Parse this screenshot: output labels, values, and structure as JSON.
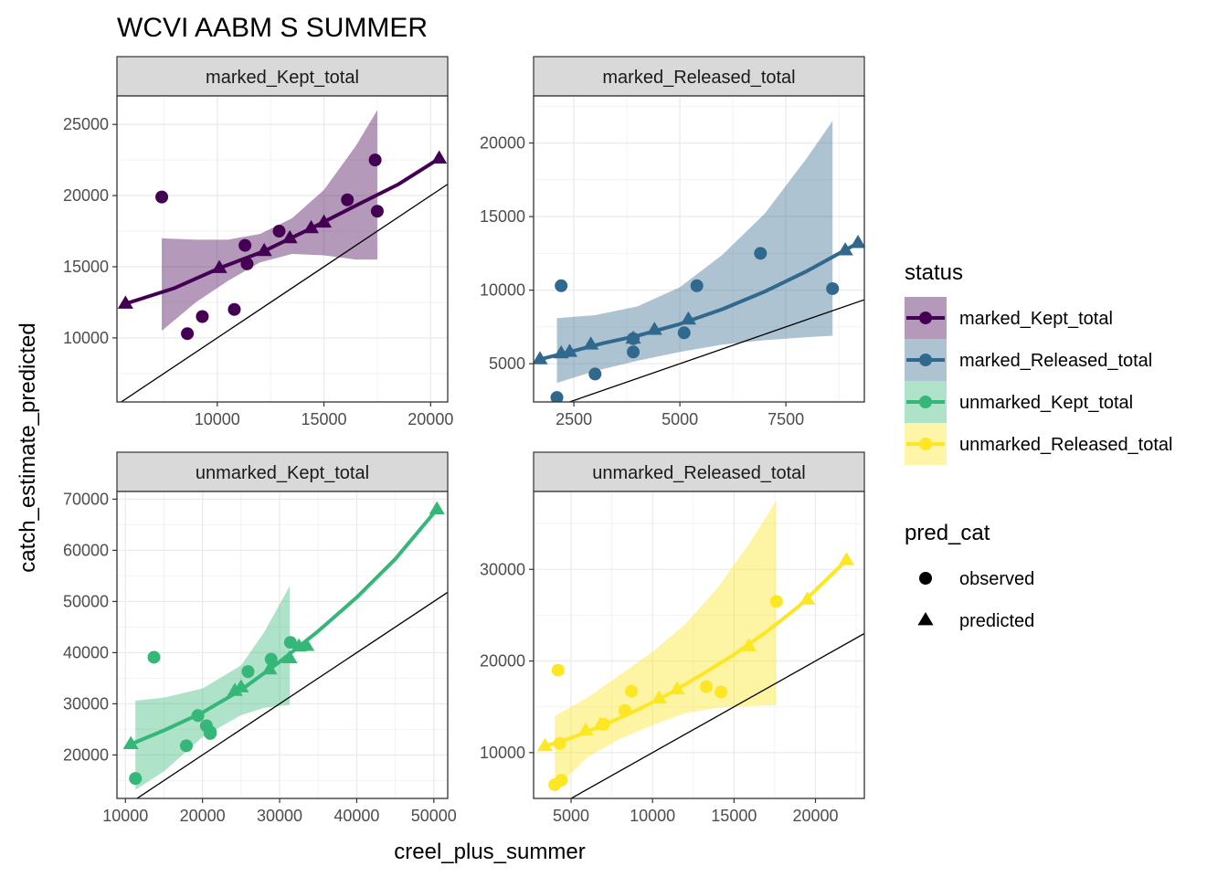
{
  "title": "WCVI AABM S SUMMER",
  "xlabel": "creel_plus_summer",
  "ylabel": "catch_estimate_predicted",
  "legend": {
    "status_title": "status",
    "status_items": [
      {
        "label": "marked_Kept_total",
        "color": "#440154"
      },
      {
        "label": "marked_Released_total",
        "color": "#31688E"
      },
      {
        "label": "unmarked_Kept_total",
        "color": "#35B779"
      },
      {
        "label": "unmarked_Released_total",
        "color": "#FDE725"
      }
    ],
    "shape_title": "pred_cat",
    "shape_items": [
      {
        "label": "observed",
        "shape": "circle"
      },
      {
        "label": "predicted",
        "shape": "triangle"
      }
    ]
  },
  "chart_data": [
    {
      "type": "scatter",
      "facet": "marked_Kept_total",
      "color": "#440154",
      "xlim": [
        5300,
        20800
      ],
      "ylim": [
        5500,
        27000
      ],
      "xticks": [
        10000,
        15000,
        20000
      ],
      "yticks": [
        10000,
        15000,
        20000,
        25000
      ],
      "observed": [
        [
          7400,
          19900
        ],
        [
          8600,
          10300
        ],
        [
          9300,
          11500
        ],
        [
          10800,
          12000
        ],
        [
          11300,
          16500
        ],
        [
          11400,
          15200
        ],
        [
          12900,
          17500
        ],
        [
          16100,
          19700
        ],
        [
          17400,
          22500
        ],
        [
          17500,
          18900
        ]
      ],
      "predicted": [
        [
          5700,
          12400
        ],
        [
          10100,
          14900
        ],
        [
          12200,
          16100
        ],
        [
          13400,
          17000
        ],
        [
          14400,
          17700
        ],
        [
          15000,
          18100
        ],
        [
          20400,
          22600
        ]
      ],
      "fit": [
        [
          5700,
          12400
        ],
        [
          8000,
          13500
        ],
        [
          10100,
          14900
        ],
        [
          12200,
          16100
        ],
        [
          14400,
          17700
        ],
        [
          16500,
          19300
        ],
        [
          18500,
          20800
        ],
        [
          20400,
          22600
        ]
      ],
      "ribbon_x": [
        7400,
        9000,
        10500,
        12000,
        13500,
        15000,
        16500,
        17500
      ],
      "ribbon_upper": [
        17000,
        16900,
        16900,
        17300,
        18400,
        20400,
        23500,
        26000
      ],
      "ribbon_lower": [
        10500,
        12500,
        14000,
        15300,
        15900,
        15800,
        15500,
        15500
      ],
      "identity_line": [
        [
          5300,
          5300
        ],
        [
          20800,
          20800
        ]
      ]
    },
    {
      "type": "scatter",
      "facet": "marked_Released_total",
      "color": "#31688E",
      "xlim": [
        1550,
        9350
      ],
      "ylim": [
        2400,
        23200
      ],
      "xticks": [
        2500,
        5000,
        7500
      ],
      "yticks": [
        5000,
        10000,
        15000,
        20000
      ],
      "observed": [
        [
          2100,
          2700
        ],
        [
          2200,
          10300
        ],
        [
          3000,
          4300
        ],
        [
          3900,
          6700
        ],
        [
          3900,
          5800
        ],
        [
          5100,
          7100
        ],
        [
          5400,
          10300
        ],
        [
          6900,
          12500
        ],
        [
          8600,
          10100
        ]
      ],
      "predicted": [
        [
          1700,
          5300
        ],
        [
          2200,
          5700
        ],
        [
          2400,
          5800
        ],
        [
          2900,
          6300
        ],
        [
          3900,
          6700
        ],
        [
          4400,
          7300
        ],
        [
          5200,
          8000
        ],
        [
          8900,
          12700
        ],
        [
          9200,
          13200
        ]
      ],
      "fit": [
        [
          1700,
          5300
        ],
        [
          2400,
          5800
        ],
        [
          3200,
          6400
        ],
        [
          4000,
          6900
        ],
        [
          5000,
          7700
        ],
        [
          6000,
          8700
        ],
        [
          7000,
          9900
        ],
        [
          8000,
          11300
        ],
        [
          9200,
          13200
        ]
      ],
      "ribbon_x": [
        2100,
        3000,
        4000,
        5000,
        6000,
        7000,
        8000,
        8600
      ],
      "ribbon_upper": [
        8100,
        8300,
        8900,
        10200,
        12400,
        15200,
        19000,
        21500
      ],
      "ribbon_lower": [
        3700,
        4500,
        5200,
        5800,
        6300,
        6600,
        6800,
        6900
      ],
      "identity_line": [
        [
          1550,
          1550
        ],
        [
          9350,
          9350
        ]
      ]
    },
    {
      "type": "scatter",
      "facet": "unmarked_Kept_total",
      "color": "#35B779",
      "xlim": [
        8900,
        51800
      ],
      "ylim": [
        11500,
        71500
      ],
      "xticks": [
        10000,
        20000,
        30000,
        40000,
        50000
      ],
      "yticks": [
        20000,
        30000,
        40000,
        50000,
        60000,
        70000
      ],
      "observed": [
        [
          11300,
          15400
        ],
        [
          13700,
          39100
        ],
        [
          17900,
          21800
        ],
        [
          19400,
          27700
        ],
        [
          20500,
          25700
        ],
        [
          21000,
          24500
        ],
        [
          21000,
          24200
        ],
        [
          25900,
          36300
        ],
        [
          28900,
          38700
        ],
        [
          31400,
          42000
        ]
      ],
      "predicted": [
        [
          10700,
          22100
        ],
        [
          24200,
          32500
        ],
        [
          25000,
          33200
        ],
        [
          28700,
          36700
        ],
        [
          31300,
          38900
        ],
        [
          32500,
          41200
        ],
        [
          33500,
          41300
        ],
        [
          50400,
          68000
        ]
      ],
      "fit": [
        [
          10700,
          22100
        ],
        [
          15000,
          24800
        ],
        [
          20000,
          28300
        ],
        [
          25000,
          32700
        ],
        [
          30000,
          38200
        ],
        [
          35000,
          44200
        ],
        [
          40000,
          50800
        ],
        [
          45000,
          58300
        ],
        [
          50400,
          68000
        ]
      ],
      "ribbon_x": [
        11300,
        15000,
        20000,
        25000,
        28000,
        31300
      ],
      "ribbon_upper": [
        30600,
        31200,
        33000,
        37500,
        44000,
        53000
      ],
      "ribbon_lower": [
        13200,
        16800,
        23500,
        27800,
        29200,
        29800
      ],
      "identity_line": [
        [
          8900,
          8900
        ],
        [
          51800,
          51800
        ]
      ]
    },
    {
      "type": "scatter",
      "facet": "unmarked_Released_total",
      "color": "#FDE725",
      "xlim": [
        2700,
        23000
      ],
      "ylim": [
        5000,
        38500
      ],
      "xticks": [
        5000,
        10000,
        15000,
        20000
      ],
      "yticks": [
        10000,
        20000,
        30000
      ],
      "observed": [
        [
          4000,
          6500
        ],
        [
          4200,
          19000
        ],
        [
          4300,
          11000
        ],
        [
          4400,
          7000
        ],
        [
          7000,
          13100
        ],
        [
          8300,
          14600
        ],
        [
          8700,
          16700
        ],
        [
          13300,
          17200
        ],
        [
          14200,
          16600
        ],
        [
          17600,
          26500
        ]
      ],
      "predicted": [
        [
          3400,
          10700
        ],
        [
          5900,
          12400
        ],
        [
          6800,
          13000
        ],
        [
          10400,
          15900
        ],
        [
          11500,
          16900
        ],
        [
          15900,
          21600
        ],
        [
          19500,
          26700
        ],
        [
          21900,
          31000
        ]
      ],
      "fit": [
        [
          3400,
          10700
        ],
        [
          5000,
          11600
        ],
        [
          7000,
          13000
        ],
        [
          9000,
          14600
        ],
        [
          11000,
          16400
        ],
        [
          13000,
          18500
        ],
        [
          15000,
          20700
        ],
        [
          17000,
          23200
        ],
        [
          19000,
          26000
        ],
        [
          21900,
          31000
        ]
      ],
      "ribbon_x": [
        4000,
        6000,
        8000,
        10000,
        12000,
        14000,
        16000,
        17600
      ],
      "ribbon_upper": [
        14000,
        16000,
        18500,
        21000,
        24000,
        28000,
        33000,
        37500
      ],
      "ribbon_lower": [
        6000,
        9500,
        11500,
        13000,
        14300,
        14900,
        15100,
        15200
      ],
      "identity_line": [
        [
          2700,
          2700
        ],
        [
          23000,
          23000
        ]
      ]
    }
  ]
}
